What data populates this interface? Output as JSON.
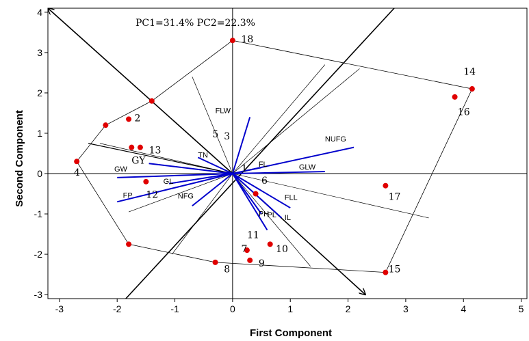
{
  "chart_data": {
    "type": "scatter",
    "annotation": "PC1=31.4% PC2=22.3%",
    "xlabel": "First Component",
    "ylabel": "Second Component",
    "xlim": [
      -3.2,
      5.1
    ],
    "ylim": [
      -3.1,
      4.1
    ],
    "x_ticks": [
      "-3",
      "-2",
      "-1",
      "0",
      "1",
      "2",
      "3",
      "4",
      "5"
    ],
    "y_ticks": [
      "-3",
      "-2",
      "-1",
      "0",
      "1",
      "2",
      "3",
      "4"
    ],
    "colors": {
      "points": "#e00000",
      "vectors": "#0000cc",
      "lines": "#000000"
    },
    "points": [
      {
        "label": "1",
        "x": -1.4,
        "y": 1.8
      },
      {
        "label": "2",
        "x": -1.8,
        "y": 1.35
      },
      {
        "label": "3",
        "x": -1.75,
        "y": 0.65
      },
      {
        "label": "4",
        "x": -2.7,
        "y": 0.3
      },
      {
        "label": "5",
        "x": -2.2,
        "y": 1.2
      },
      {
        "label": "6",
        "x": 0.4,
        "y": -0.5
      },
      {
        "label": "7",
        "x": -1.8,
        "y": -1.75
      },
      {
        "label": "8",
        "x": -0.3,
        "y": -2.2
      },
      {
        "label": "9",
        "x": 0.3,
        "y": -2.15
      },
      {
        "label": "10",
        "x": 0.65,
        "y": -1.75
      },
      {
        "label": "11",
        "x": 0.25,
        "y": -1.9
      },
      {
        "label": "12",
        "x": -1.5,
        "y": -0.2
      },
      {
        "label": "13",
        "x": -1.6,
        "y": 0.65
      },
      {
        "label": "14",
        "x": 4.15,
        "y": 2.1
      },
      {
        "label": "15",
        "x": 2.65,
        "y": -2.45
      },
      {
        "label": "16",
        "x": 3.85,
        "y": 1.9
      },
      {
        "label": "17",
        "x": 2.65,
        "y": -0.3
      },
      {
        "label": "18",
        "x": 0.0,
        "y": 3.3
      }
    ],
    "vectors": [
      {
        "label": "FLW",
        "x": 0.3,
        "y": 1.4
      },
      {
        "label": "NUFG",
        "x": 2.1,
        "y": 0.65
      },
      {
        "label": "GLW",
        "x": 1.6,
        "y": 0.05
      },
      {
        "label": "FL",
        "x": 0.5,
        "y": 0.15
      },
      {
        "label": "TN",
        "x": -0.6,
        "y": 0.4
      },
      {
        "label": "GY",
        "x": -1.45,
        "y": 0.25
      },
      {
        "label": "GW",
        "x": -2.0,
        "y": -0.1
      },
      {
        "label": "GL",
        "x": -1.1,
        "y": -0.25
      },
      {
        "label": "FP",
        "x": -2.0,
        "y": -0.7
      },
      {
        "label": "NFG",
        "x": -0.7,
        "y": -0.8
      },
      {
        "label": "FLL",
        "x": 1.0,
        "y": -0.85
      },
      {
        "label": "IL",
        "x": 0.85,
        "y": -1.1
      },
      {
        "label": "PH",
        "x": 0.5,
        "y": -1.0
      },
      {
        "label": "PL",
        "x": 0.6,
        "y": -1.4
      }
    ]
  }
}
